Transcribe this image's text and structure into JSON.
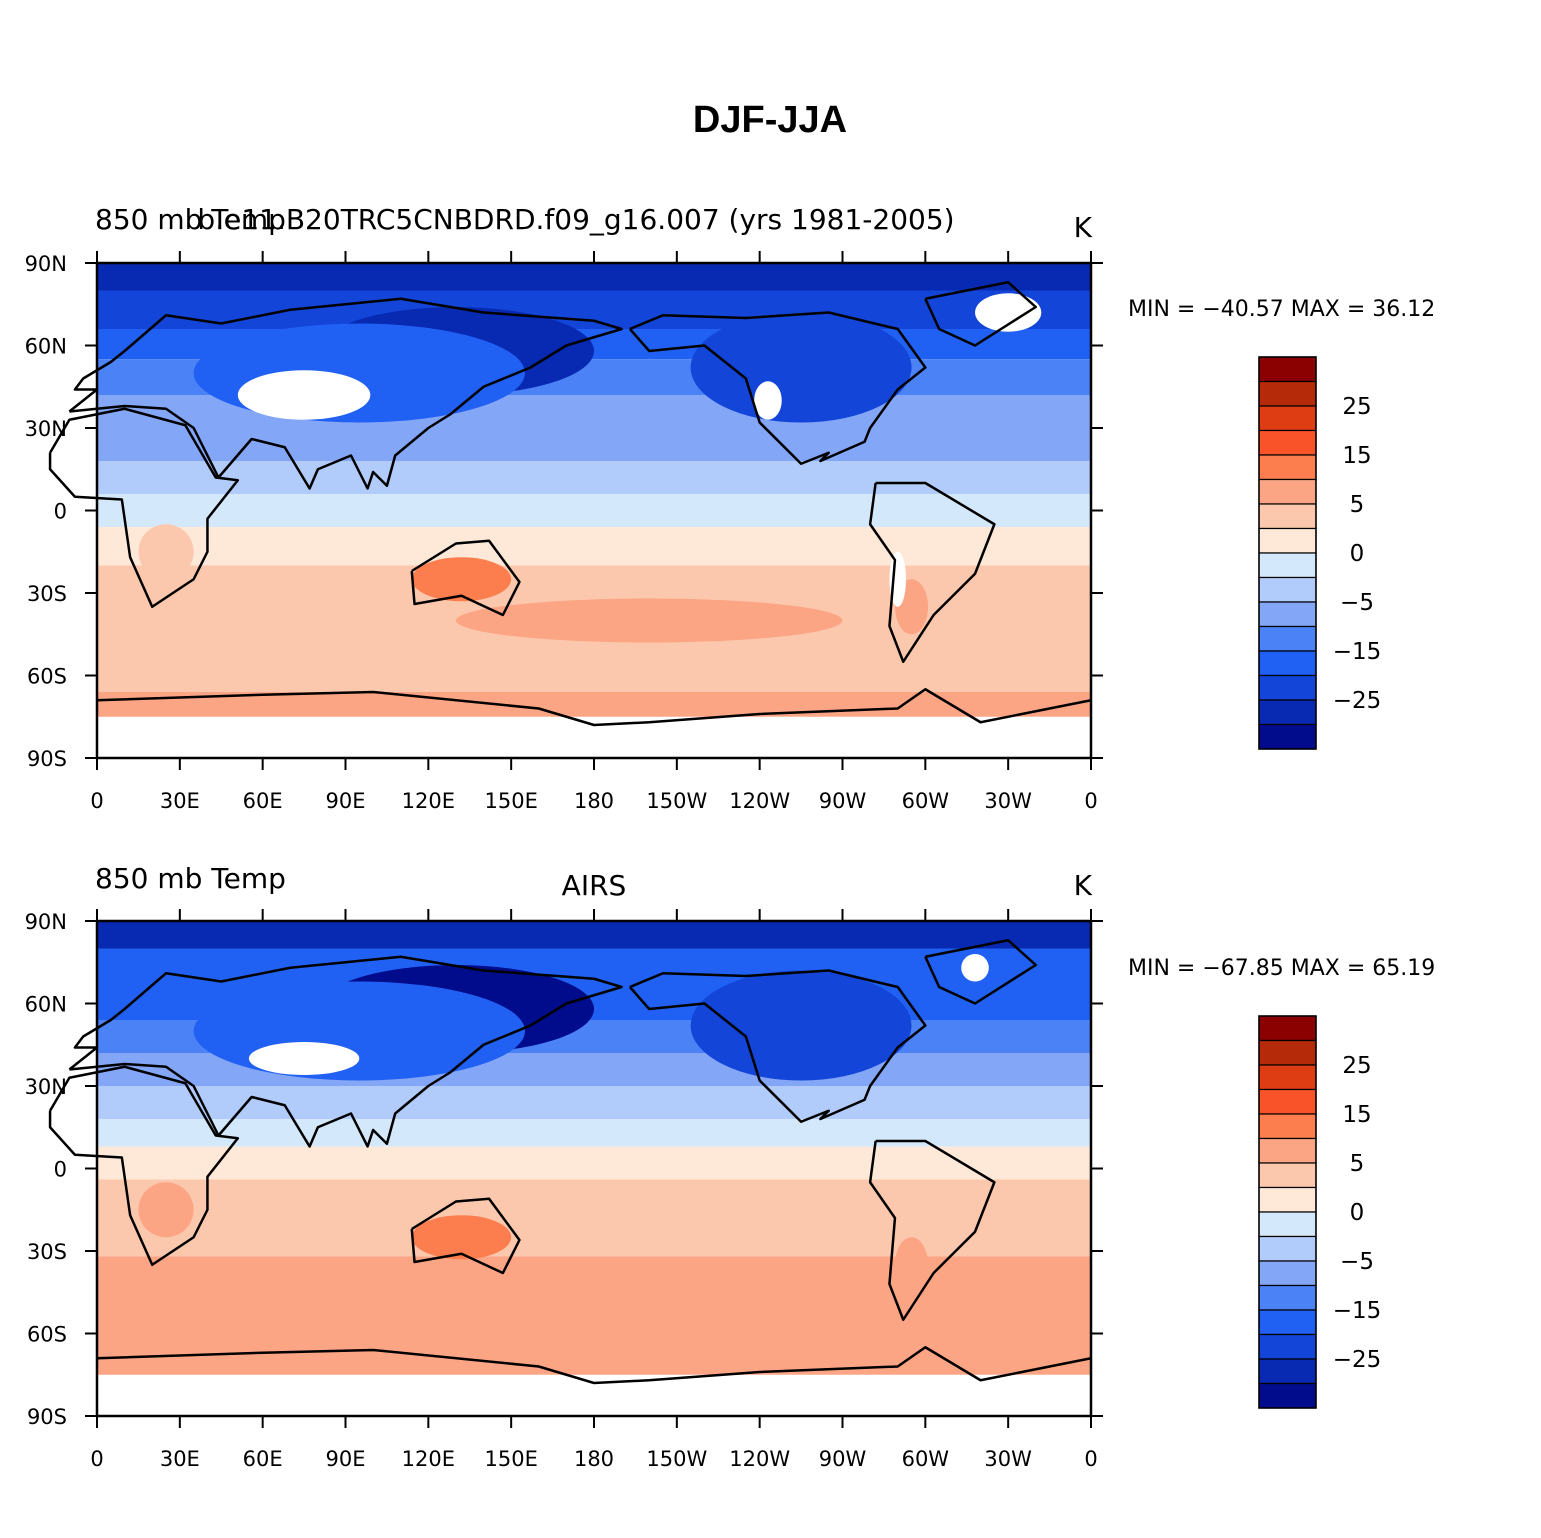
{
  "figure": {
    "title": "DJF-JJA"
  },
  "panels": [
    {
      "variable": "850 mb Temp",
      "case": "b.e11.B20TRC5CNBDRD.f09_g16.007 (yrs 1981-2005)",
      "units": "K",
      "stats": "MIN = −40.57  MAX =   36.12",
      "min": -40.57,
      "max": 36.12
    },
    {
      "variable": "850 mb Temp",
      "case": "AIRS",
      "units": "K",
      "stats": "MIN = −67.85  MAX =   65.19",
      "min": -67.85,
      "max": 65.19
    }
  ],
  "axes": {
    "lat_ticks": [
      "90N",
      "60N",
      "30N",
      "0",
      "30S",
      "60S",
      "90S"
    ],
    "lon_ticks": [
      "0",
      "30E",
      "60E",
      "90E",
      "120E",
      "150E",
      "180",
      "150W",
      "120W",
      "90W",
      "60W",
      "30W",
      "0"
    ]
  },
  "colorbar": {
    "levels": [
      -35,
      -30,
      -25,
      -20,
      -15,
      -10,
      -5,
      -2,
      0,
      2,
      5,
      10,
      15,
      20,
      25,
      30
    ],
    "labels": [
      "25",
      "15",
      "5",
      "0",
      "−5",
      "−15",
      "−25"
    ],
    "colors": [
      "#8b0000",
      "#b52b0a",
      "#de3c12",
      "#f9532a",
      "#fc7e4e",
      "#fca585",
      "#fcc8ad",
      "#fee8d8",
      "#d4e8fb",
      "#b1cbfa",
      "#84a6f7",
      "#4b82f6",
      "#2060f2",
      "#1245d8",
      "#0829b2",
      "#000c8c"
    ]
  }
}
